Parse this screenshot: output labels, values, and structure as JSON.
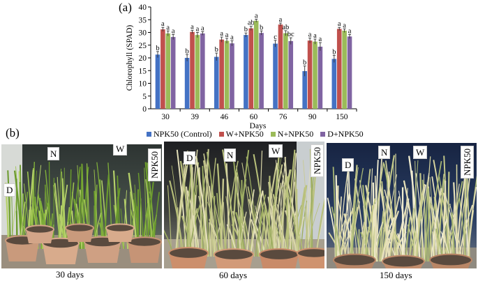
{
  "panel_a_label": "(a)",
  "panel_b_label": "(b)",
  "chart_data": {
    "type": "bar",
    "title": "",
    "xlabel": "Days",
    "ylabel": "Chlorophyll (SPAD)",
    "ylim": [
      0,
      40
    ],
    "yticks": [
      0,
      5,
      10,
      15,
      20,
      25,
      30,
      35,
      40
    ],
    "grid": false,
    "legend_position": "bottom",
    "categories": [
      "30",
      "39",
      "46",
      "60",
      "76",
      "90",
      "150"
    ],
    "series": [
      {
        "name": "NPK50 (Control)",
        "color": "#4472c4",
        "values": [
          21.3,
          20.0,
          20.4,
          29.0,
          25.6,
          14.8,
          19.6
        ],
        "errors": [
          1.2,
          1.3,
          1.5,
          0.8,
          1.3,
          2.0,
          1.4
        ],
        "letters": [
          "b",
          "b",
          "b",
          "b",
          "c",
          "b",
          "b"
        ]
      },
      {
        "name": "W+NPK50",
        "color": "#c0504d",
        "values": [
          31.2,
          30.2,
          27.2,
          31.6,
          33.1,
          26.8,
          31.4
        ],
        "errors": [
          0.8,
          0.6,
          1.0,
          0.8,
          0.6,
          1.0,
          0.6
        ],
        "letters": [
          "a",
          "a",
          "a",
          "ab",
          "a",
          "a",
          "a"
        ]
      },
      {
        "name": "N+NPK50",
        "color": "#9bbb59",
        "values": [
          29.6,
          29.0,
          26.7,
          34.6,
          29.7,
          26.4,
          30.7
        ],
        "errors": [
          1.0,
          1.0,
          1.0,
          0.6,
          1.0,
          1.0,
          0.7
        ],
        "letters": [
          "a",
          "a",
          "a",
          "a",
          "ab",
          "a",
          "a"
        ]
      },
      {
        "name": "D+NPK50",
        "color": "#8064a2",
        "values": [
          28.2,
          29.6,
          25.7,
          29.8,
          26.6,
          24.4,
          28.4
        ],
        "errors": [
          1.0,
          0.7,
          1.0,
          0.8,
          1.3,
          1.6,
          0.8
        ],
        "letters": [
          "a",
          "a",
          "a",
          "b",
          "bc",
          "a",
          "a"
        ]
      }
    ]
  },
  "photos": [
    {
      "tags": {
        "d": "D",
        "n": "N",
        "w": "W",
        "npk": "NPK50"
      },
      "caption": "30 days"
    },
    {
      "tags": {
        "d": "D",
        "n": "N",
        "w": "W",
        "npk": "NPK50"
      },
      "caption": "60 days"
    },
    {
      "tags": {
        "d": "D",
        "n": "N",
        "w": "W",
        "npk": "NPK50"
      },
      "caption": "150 days"
    }
  ]
}
